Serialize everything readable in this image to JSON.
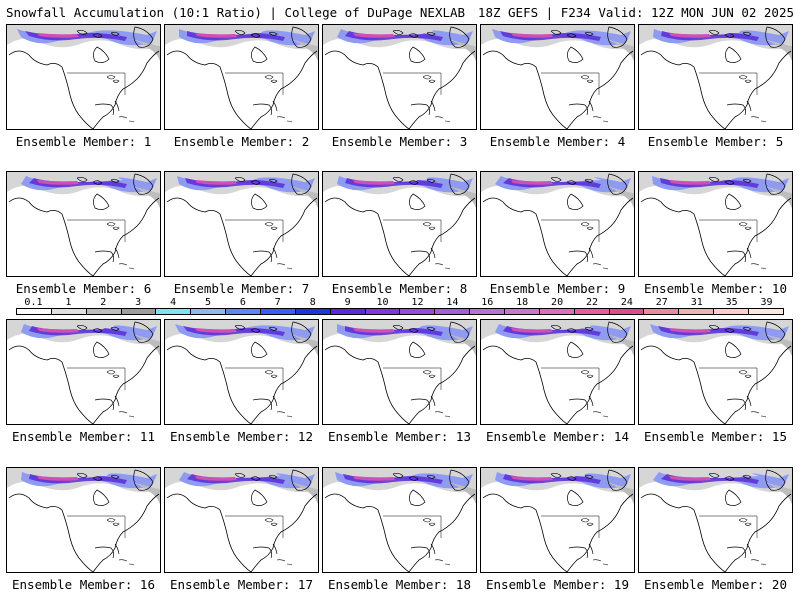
{
  "header": {
    "title_left": "Snowfall Accumulation (10:1 Ratio) | College of DuPage NEXLAB",
    "title_right": "18Z GEFS | F234 Valid: 12Z MON JUN 02 2025"
  },
  "members": [
    {
      "label": "Ensemble Member: 1"
    },
    {
      "label": "Ensemble Member: 2"
    },
    {
      "label": "Ensemble Member: 3"
    },
    {
      "label": "Ensemble Member: 4"
    },
    {
      "label": "Ensemble Member: 5"
    },
    {
      "label": "Ensemble Member: 6"
    },
    {
      "label": "Ensemble Member: 7"
    },
    {
      "label": "Ensemble Member: 8"
    },
    {
      "label": "Ensemble Member: 9"
    },
    {
      "label": "Ensemble Member: 10"
    },
    {
      "label": "Ensemble Member: 11"
    },
    {
      "label": "Ensemble Member: 12"
    },
    {
      "label": "Ensemble Member: 13"
    },
    {
      "label": "Ensemble Member: 14"
    },
    {
      "label": "Ensemble Member: 15"
    },
    {
      "label": "Ensemble Member: 16"
    },
    {
      "label": "Ensemble Member: 17"
    },
    {
      "label": "Ensemble Member: 18"
    },
    {
      "label": "Ensemble Member: 19"
    },
    {
      "label": "Ensemble Member: 20"
    }
  ],
  "legend": {
    "labels": [
      "0.1",
      "1",
      "2",
      "3",
      "4",
      "5",
      "6",
      "7",
      "8",
      "9",
      "10",
      "12",
      "14",
      "16",
      "18",
      "20",
      "22",
      "24",
      "27",
      "31",
      "35",
      "39"
    ],
    "colors": [
      "#ffffff",
      "#e0e0e0",
      "#bdbdbd",
      "#9e9e9e",
      "#7fe4ef",
      "#8fb8f0",
      "#5a8bef",
      "#3a5ef0",
      "#1b36d9",
      "#5a2ad8",
      "#7a3cd2",
      "#8f4fd6",
      "#a45fd8",
      "#bd6fd8",
      "#cf75c8",
      "#de6fb5",
      "#e0609c",
      "#d8508a",
      "#e98a9e",
      "#f2b0b5",
      "#f7cfcf",
      "#fbe8e0"
    ]
  }
}
